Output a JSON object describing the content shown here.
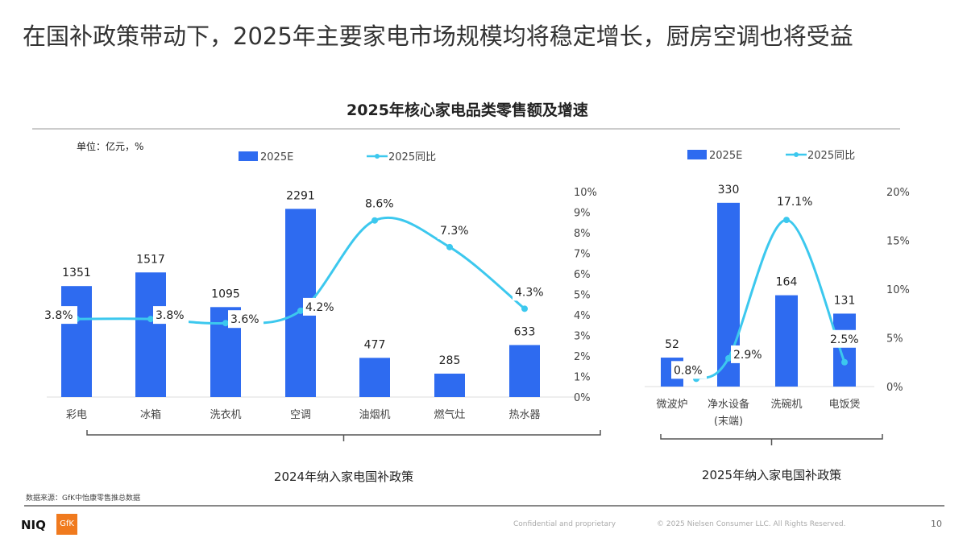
{
  "slide": {
    "title": "在国补政策带动下，2025年主要家电市场规模均将稳定增长，厨房空调也将受益",
    "chart_title": "2025年核心家电品类零售额及增速",
    "source": "数据来源：GfK中怡康零售推总数据",
    "footer_confidential": "Confidential and proprietary",
    "footer_copyright": "© 2025 Nielsen Consumer LLC. All Rights Reserved.",
    "page_number": "10",
    "logo_niq": "NIQ",
    "logo_gfk": "GfK"
  },
  "chart_data": [
    {
      "type": "bar",
      "unit": "单位：亿元，%",
      "group_label": "2024年纳入家电国补政策",
      "categories": [
        "彩电",
        "冰箱",
        "洗衣机",
        "空调",
        "油烟机",
        "燃气灶",
        "热水器"
      ],
      "series": [
        {
          "name": "2025E",
          "type": "bar",
          "values": [
            1351,
            1517,
            1095,
            2291,
            477,
            285,
            633
          ],
          "color": "#2E6BF0"
        },
        {
          "name": "2025同比",
          "type": "line",
          "values": [
            3.8,
            3.8,
            3.6,
            4.2,
            8.6,
            7.3,
            4.3
          ],
          "color": "#3CC8EE"
        }
      ],
      "bar_ylim": [
        0,
        2500
      ],
      "y2lim": [
        0,
        10
      ],
      "y2ticks": [
        "0%",
        "1%",
        "2%",
        "3%",
        "4%",
        "5%",
        "6%",
        "7%",
        "8%",
        "9%",
        "10%"
      ]
    },
    {
      "type": "bar",
      "group_label": "2025年纳入家电国补政策",
      "categories": [
        "微波炉",
        "净水设备\n(末端)",
        "洗碗机",
        "电饭煲"
      ],
      "series": [
        {
          "name": "2025E",
          "type": "bar",
          "values": [
            52,
            330,
            164,
            131
          ],
          "color": "#2E6BF0"
        },
        {
          "name": "2025同比",
          "type": "line",
          "values": [
            0.8,
            2.9,
            17.1,
            2.5
          ],
          "color": "#3CC8EE"
        }
      ],
      "bar_ylim": [
        0,
        350
      ],
      "y2lim": [
        0,
        20
      ],
      "y2ticks": [
        "0%",
        "5%",
        "10%",
        "15%",
        "20%"
      ]
    }
  ]
}
